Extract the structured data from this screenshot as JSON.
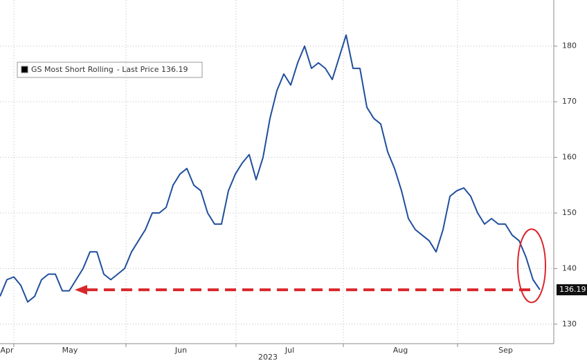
{
  "chart_data": {
    "type": "line",
    "series": [
      {
        "name": "GS Most Short Rolling",
        "color": "#1f4e9c",
        "values": [
          135,
          138,
          138.5,
          137,
          134,
          135,
          138,
          139,
          139,
          136,
          136,
          138,
          140,
          143,
          143,
          139,
          138,
          139,
          140,
          143,
          145,
          147,
          150,
          150,
          151,
          155,
          157,
          158,
          155,
          154,
          150,
          148,
          148,
          154,
          157,
          159,
          160.5,
          156,
          160,
          167,
          172,
          175,
          173,
          177,
          180,
          176,
          177,
          176,
          174,
          178,
          182,
          176,
          176,
          169,
          167,
          166,
          161,
          158,
          154,
          149,
          147,
          146,
          145,
          143,
          147,
          153,
          154,
          154.5,
          153,
          150,
          148,
          149,
          148,
          148,
          146,
          145,
          142,
          138,
          136.19
        ]
      }
    ],
    "legend_suffix": "- Last Price 136.19",
    "last_value_label": "136.19",
    "x_sublabel": "2023",
    "xlim": [
      0,
      80
    ],
    "xticks": [
      {
        "value": -1,
        "label": "Apr"
      },
      {
        "value": 2,
        "label": "May"
      },
      {
        "value": 18.2,
        "label": "Jun"
      },
      {
        "value": 34.1,
        "label": "Jul"
      },
      {
        "value": 49.6,
        "label": "Aug"
      },
      {
        "value": 66.1,
        "label": "Sep"
      }
    ],
    "ylim": [
      126.5,
      188.3
    ],
    "yticks": [
      130,
      140,
      150,
      160,
      170,
      180
    ],
    "grid": true,
    "annotation_color": "#d9262b"
  }
}
